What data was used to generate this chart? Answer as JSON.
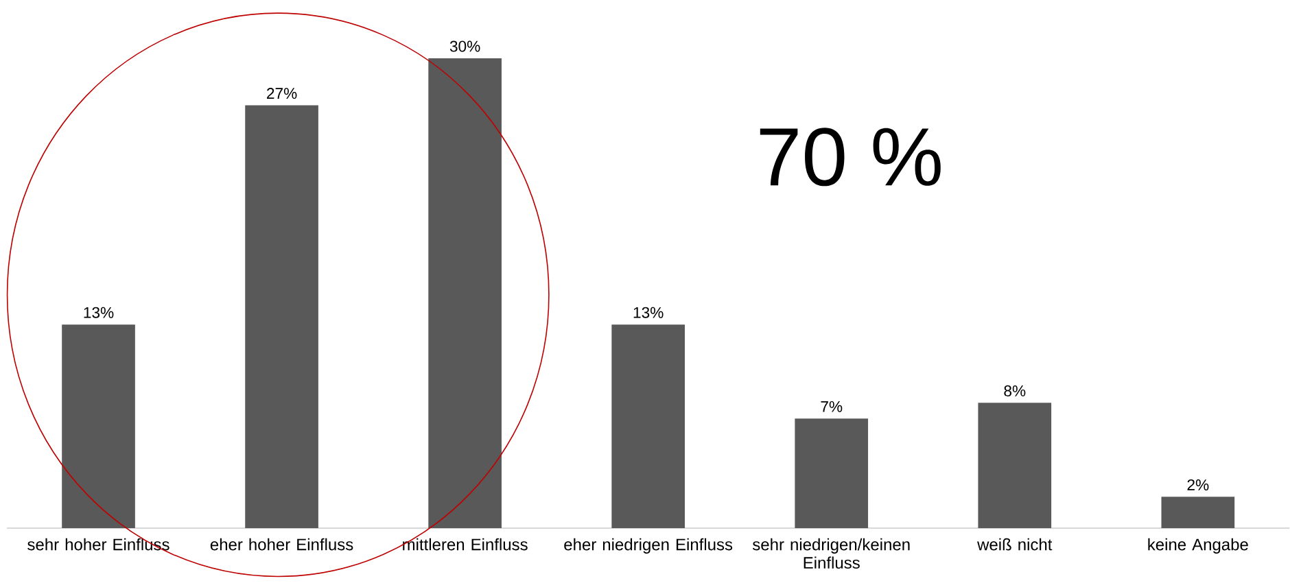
{
  "chart_data": {
    "type": "bar",
    "categories": [
      "sehr hoher Einfluss",
      "eher hoher Einfluss",
      "mittleren Einfluss",
      "eher niedrigen Einfluss",
      "sehr niedrigen/keinen Einfluss",
      "weiß nicht",
      "keine Angabe"
    ],
    "values": [
      13,
      27,
      30,
      13,
      7,
      8,
      2
    ],
    "value_labels": [
      "13%",
      "27%",
      "30%",
      "13%",
      "7%",
      "8%",
      "2%"
    ],
    "color": "#595959",
    "annotations": [
      "70 %"
    ]
  }
}
